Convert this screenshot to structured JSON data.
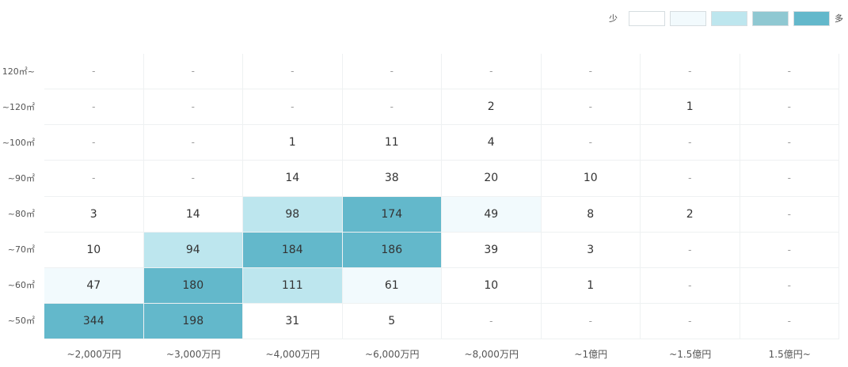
{
  "chart_data": {
    "type": "heatmap",
    "x_categories": [
      "~2,000万円",
      "~3,000万円",
      "~4,000万円",
      "~6,000万円",
      "~8,000万円",
      "~1億円",
      "~1.5億円",
      "1.5億円~"
    ],
    "y_categories": [
      "120㎡~",
      "~120㎡",
      "~100㎡",
      "~90㎡",
      "~80㎡",
      "~70㎡",
      "~60㎡",
      "~50㎡"
    ],
    "values": [
      [
        null,
        null,
        null,
        null,
        null,
        null,
        null,
        null
      ],
      [
        null,
        null,
        null,
        null,
        2,
        null,
        1,
        null
      ],
      [
        null,
        null,
        1,
        11,
        4,
        null,
        null,
        null
      ],
      [
        null,
        null,
        14,
        38,
        20,
        10,
        null,
        null
      ],
      [
        3,
        14,
        98,
        174,
        49,
        8,
        2,
        null
      ],
      [
        10,
        94,
        184,
        186,
        39,
        3,
        null,
        null
      ],
      [
        47,
        180,
        111,
        61,
        10,
        1,
        null,
        null
      ],
      [
        344,
        198,
        31,
        5,
        null,
        null,
        null,
        null
      ]
    ],
    "empty_symbol": "-",
    "legend": {
      "low_label": "少",
      "high_label": "多",
      "colors": [
        "#ffffff",
        "#f2fafd",
        "#bde6ee",
        "#8fc8d2",
        "#63b8cb"
      ]
    },
    "color_thresholds": [
      40,
      90,
      170,
      1000000
    ]
  }
}
